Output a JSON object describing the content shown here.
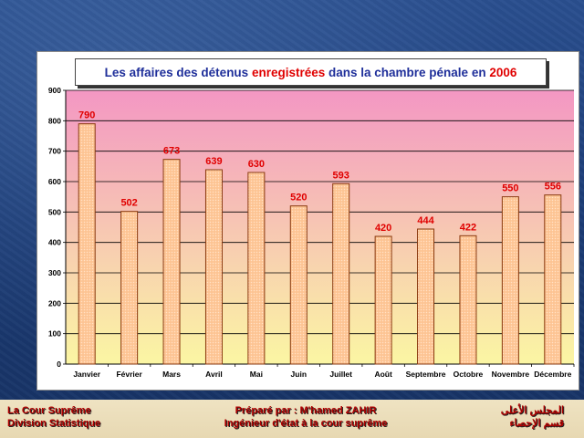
{
  "chart_data": {
    "type": "bar",
    "title_parts": [
      {
        "text": "Les affaires des détenus ",
        "color": "#1f2f9a"
      },
      {
        "text": "enregistrées",
        "color": "#e00000"
      },
      {
        "text": " dans la chambre pénale en ",
        "color": "#1f2f9a"
      },
      {
        "text": "2006",
        "color": "#e00000"
      }
    ],
    "categories": [
      "Janvier",
      "Février",
      "Mars",
      "Avril",
      "Mai",
      "Juin",
      "Juillet",
      "Août",
      "Septembre",
      "Octobre",
      "Novembre",
      "Décembre"
    ],
    "values": [
      790,
      502,
      673,
      639,
      630,
      520,
      593,
      420,
      444,
      422,
      550,
      556
    ],
    "ylim": [
      0,
      900
    ],
    "yticks": [
      0,
      100,
      200,
      300,
      400,
      500,
      600,
      700,
      800,
      900
    ],
    "grid": true,
    "data_labels": true,
    "colors": {
      "bar_fill": "#ffc99a",
      "bar_stroke": "#8a3a10",
      "label": "#e00000",
      "plot_top": "#f397c3",
      "plot_bottom": "#fbf6a3"
    }
  },
  "footer": {
    "left_line1": "La Cour Suprême",
    "left_line2": "Division Statistique",
    "center_line1": "Préparé par : M'hamed ZAHIR",
    "center_line2": "Ingénieur d'état à la cour suprême",
    "right_line1": "المجلس الأعلى",
    "right_line2": "قسم الإحصاء"
  }
}
